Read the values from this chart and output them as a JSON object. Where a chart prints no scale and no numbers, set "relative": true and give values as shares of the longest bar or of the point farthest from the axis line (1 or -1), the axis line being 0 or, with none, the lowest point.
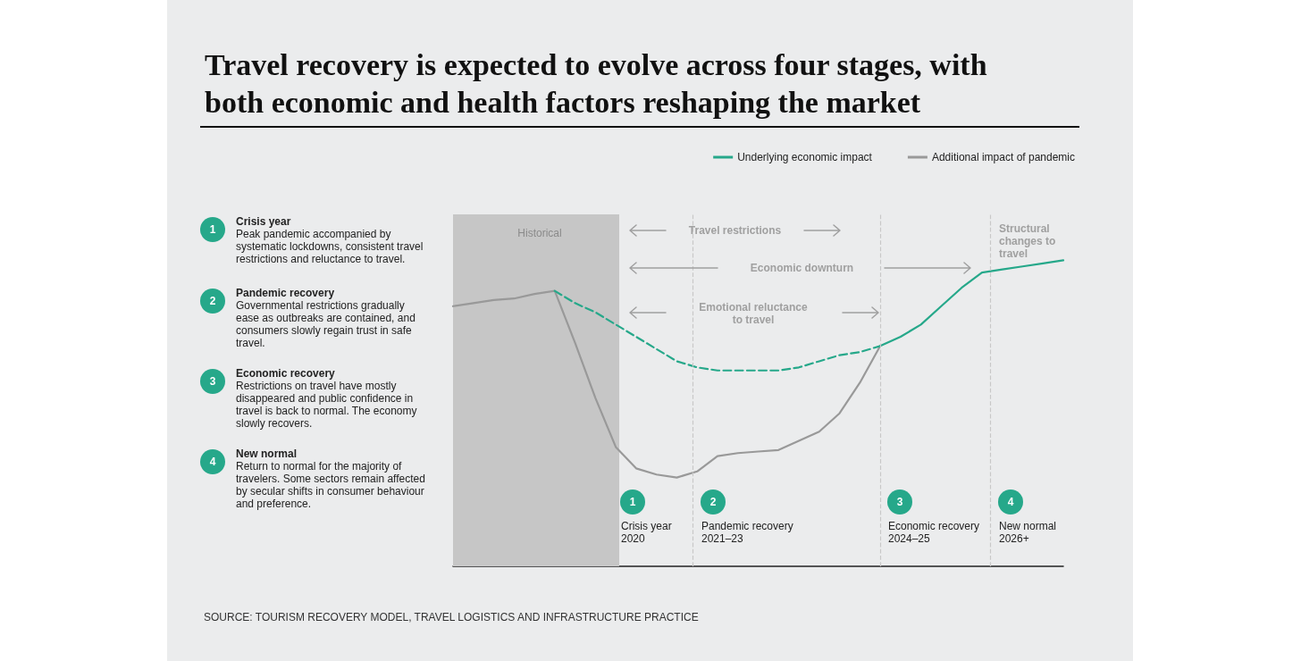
{
  "chart_data": {
    "type": "line",
    "title": "Travel recovery is expected to evolve across four stages, with both economic and health factors reshaping the market",
    "relative": true,
    "marker": "none",
    "line_style": "solid",
    "legend": "top right",
    "categories": [
      null,
      null,
      null,
      null,
      null,
      null,
      null,
      null,
      null,
      null,
      null,
      null,
      null,
      null,
      null,
      null,
      null,
      null,
      null,
      null,
      null,
      null,
      null,
      null,
      null,
      null,
      null,
      null,
      null,
      null,
      null
    ],
    "series": [
      {
        "name": "Underlying economic impact",
        "color": "#26a88a",
        "values": [
          null,
          null,
          null,
          null,
          null,
          null,
          null,
          null,
          null,
          null,
          null,
          null,
          null,
          null,
          null,
          null,
          null,
          null,
          null,
          null,
          null,
          0.72,
          0.75,
          0.79,
          0.85,
          0.91,
          0.96,
          0.97,
          0.98,
          0.99,
          1
        ]
      },
      {
        "name": "Additional impact of pandemic",
        "color": "#999999",
        "values": [
          0.85,
          0.86,
          0.87,
          0.875,
          0.89,
          0.9,
          0.73,
          0.55,
          0.39,
          0.32,
          0.3,
          0.29,
          0.31,
          0.36,
          0.37,
          0.375,
          0.38,
          0.41,
          0.44,
          0.5,
          0.6,
          0.72,
          null,
          null,
          null,
          null,
          null,
          null,
          null,
          null,
          null
        ]
      },
      {
        "color": "#26a88a",
        "line_style": "dashed",
        "values": [
          null,
          null,
          null,
          null,
          null,
          0.9,
          0.86,
          0.83,
          0.79,
          0.75,
          0.71,
          0.67,
          0.65,
          0.64,
          0.64,
          0.64,
          0.64,
          0.65,
          0.67,
          0.69,
          0.7,
          0.72,
          null,
          null,
          null,
          null,
          null,
          null,
          null,
          null,
          null
        ]
      }
    ],
    "annotations": [
      "Travel restrictions",
      "Economic downturn",
      "Emotional reluctance\nto travel",
      "Structural\nchanges to\ntravel",
      "1",
      "Crisis year\n2020",
      "2",
      "Pandemic recovery\n2021–23",
      "3",
      "Economic recovery\n2024–25",
      "4",
      "New normal\n2026+",
      "1",
      "Crisis year",
      "Peak pandemic accompanied by systematic lockdowns, consistent travel restrictions and reluctance to travel.",
      "2",
      "Pandemic recovery",
      "Governmental restrictions gradually ease as outbreaks are contained, and consumers slowly regain trust in safe travel.",
      "3",
      "Economic recovery",
      "Restrictions on travel have mostly disappeared and public confidence in travel is back to normal. The economy slowly recovers.",
      "4",
      "New normal",
      "Return to normal for the majority of travelers. Some sectors remain affected by secular shifts in consumer behaviour and preference.",
      "SOURCE: TOURISM RECOVERY MODEL, TRAVEL LOGISTICS AND INFRASTRUCTURE PRACTICE",
      "Historical"
    ]
  }
}
